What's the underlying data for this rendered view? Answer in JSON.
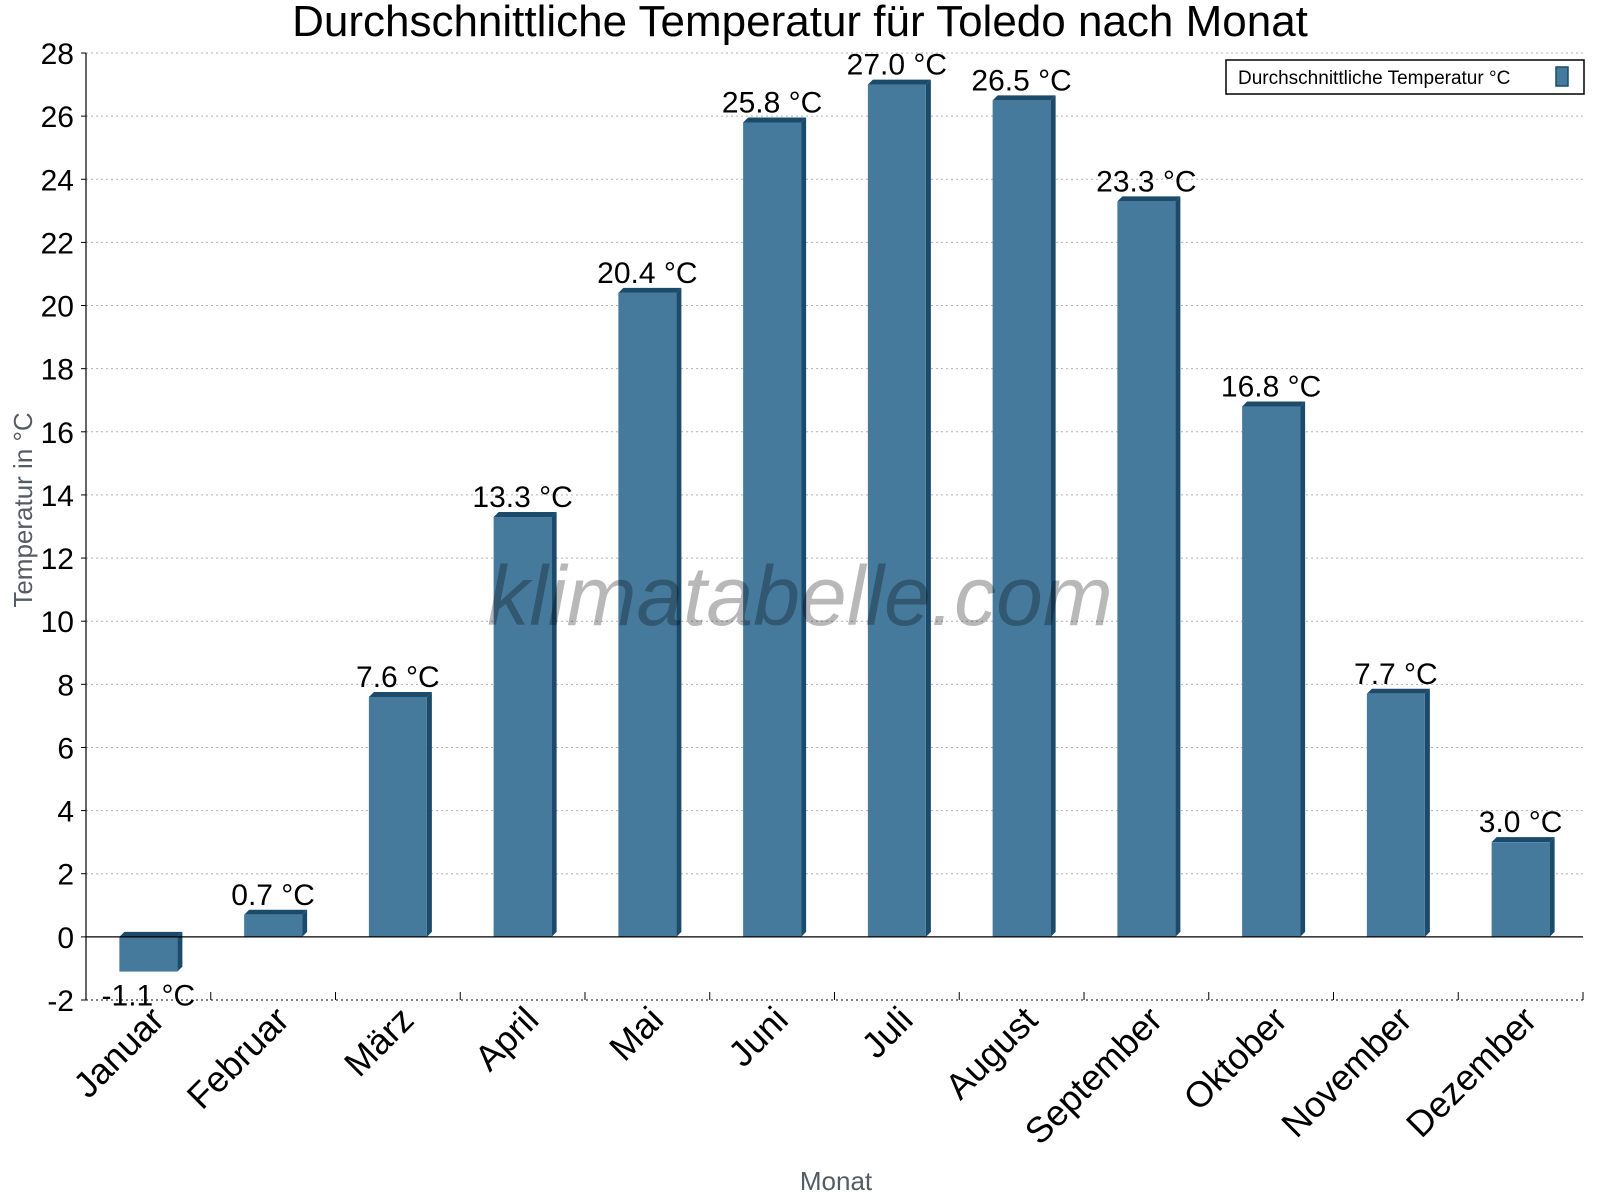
{
  "chart_data": {
    "type": "bar",
    "title": "Durchschnittliche Temperatur für Toledo nach Monat",
    "xlabel": "Monat",
    "ylabel": "Temperatur in °C",
    "ylim": [
      -2,
      28
    ],
    "yticks": [
      -2,
      0,
      2,
      4,
      6,
      8,
      10,
      12,
      14,
      16,
      18,
      20,
      22,
      24,
      26,
      28
    ],
    "grid": "horizontal dotted",
    "legend_position": "top-right",
    "watermark": "klimatabelle.com",
    "unit_suffix": " °C",
    "categories": [
      "Januar",
      "Februar",
      "März",
      "April",
      "Mai",
      "Juni",
      "Juli",
      "August",
      "September",
      "Oktober",
      "November",
      "Dezember"
    ],
    "series": [
      {
        "name": "Durchschnittliche Temperatur °C",
        "color": "#457a9c",
        "values": [
          -1.1,
          0.7,
          7.6,
          13.3,
          20.4,
          25.8,
          27.0,
          26.5,
          23.3,
          16.8,
          7.7,
          3.0
        ],
        "labels": [
          "-1.1 °C",
          "0.7 °C",
          "7.6 °C",
          "13.3 °C",
          "20.4 °C",
          "25.8 °C",
          "27.0 °C",
          "26.5 °C",
          "23.3 °C",
          "16.8 °C",
          "7.7 °C",
          "3.0 °C"
        ]
      }
    ]
  }
}
